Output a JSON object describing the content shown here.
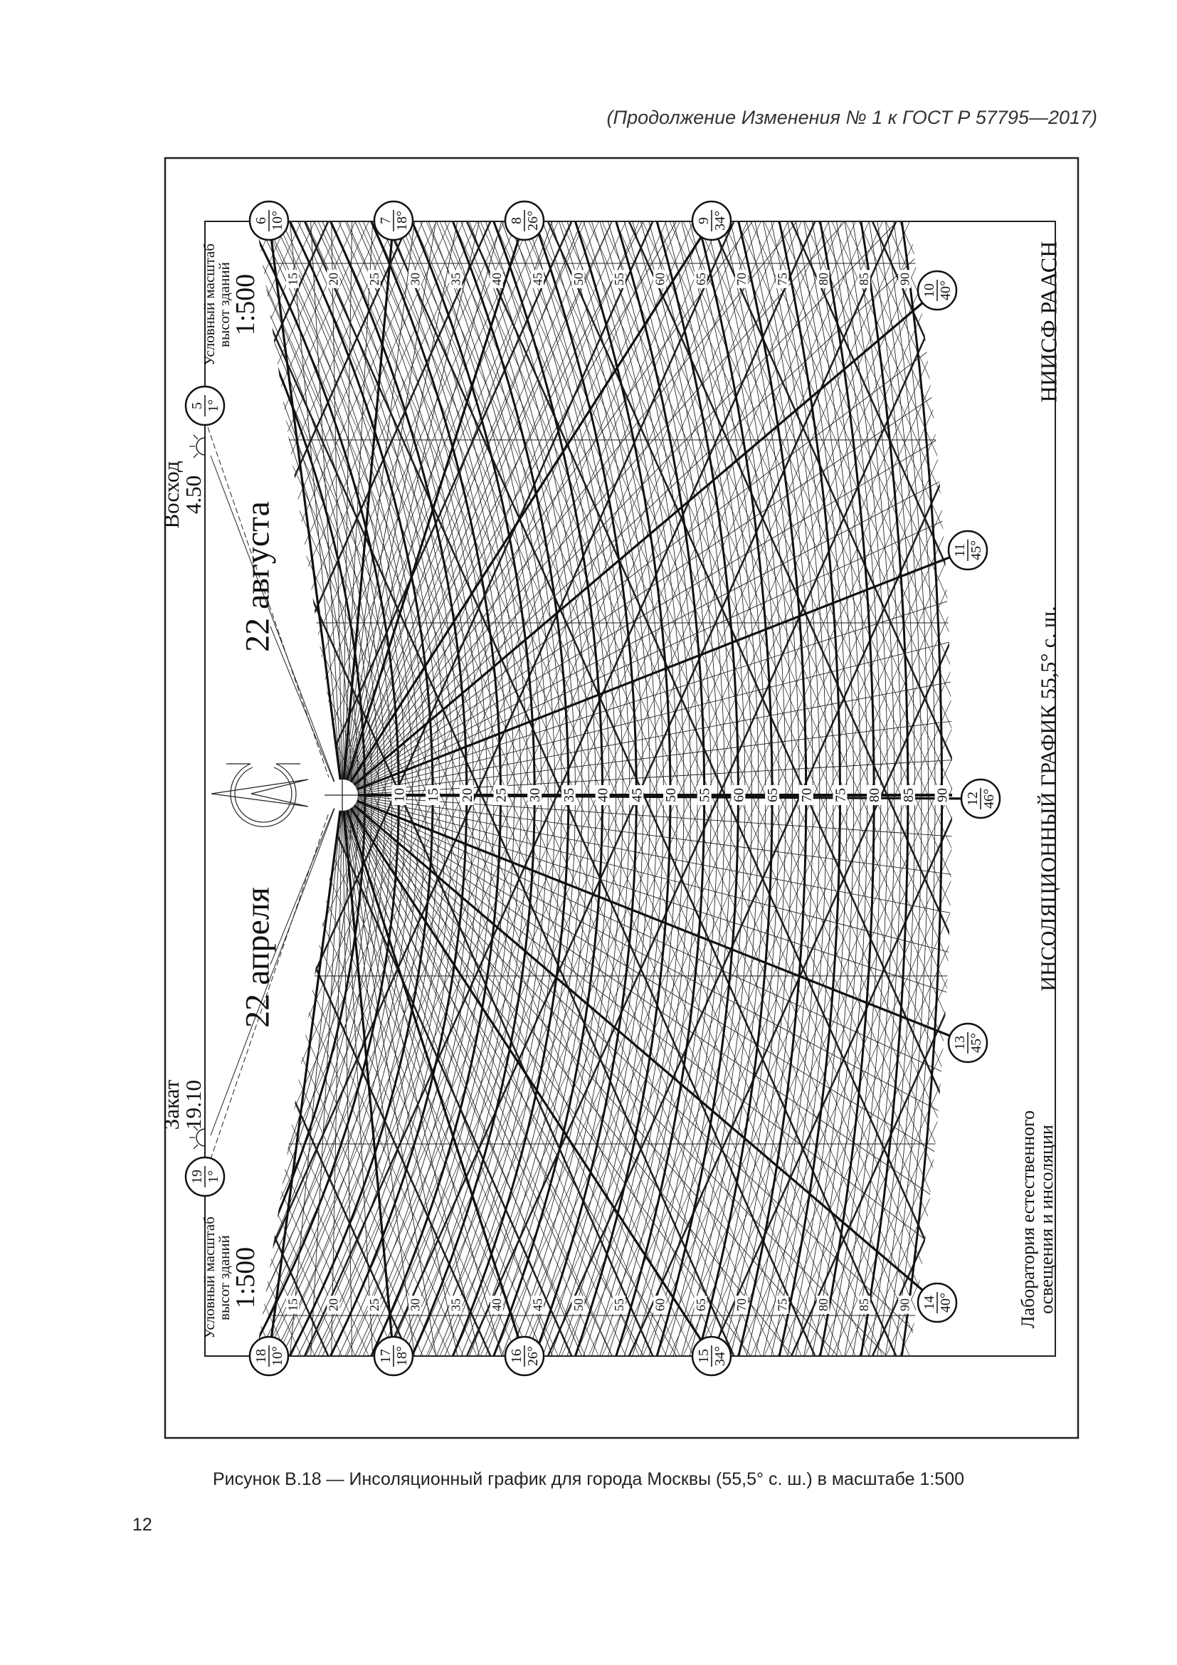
{
  "header": "(Продолжение Изменения № 1 к ГОСТ Р 57795—2017)",
  "caption": "Рисунок В.18 — Инсоляционный график для города Москвы (55,5° с. ш.) в масштабе 1:500",
  "page_number": "12",
  "chart": {
    "title": "ИНСОЛЯЦИОННЫЙ ГРАФИК 55,5° с. ш.",
    "org": "НИИСФ РААСН",
    "lab_line1": "Лаборатория естественного",
    "lab_line2": "освещения и инсоляции",
    "scale_note_top": {
      "line1": "Условный масштаб",
      "line2": "высот зданий",
      "scale": "1:500"
    },
    "scale_note_bottom": {
      "line1": "Условный масштаб",
      "line2": "высот зданий",
      "scale": "1:500"
    },
    "sunrise": {
      "label": "Восход",
      "time": "4.50"
    },
    "sunset": {
      "label": "Закат",
      "time": "19.10"
    },
    "date_top": "22 августа",
    "date_bottom": "22 апреля",
    "hour_markers": [
      {
        "hour": "5",
        "altitude": "1°"
      },
      {
        "hour": "6",
        "altitude": "10°"
      },
      {
        "hour": "7",
        "altitude": "18°"
      },
      {
        "hour": "8",
        "altitude": "26°"
      },
      {
        "hour": "9",
        "altitude": "34°"
      },
      {
        "hour": "10",
        "altitude": "40°"
      },
      {
        "hour": "11",
        "altitude": "45°"
      },
      {
        "hour": "12",
        "altitude": "46°"
      },
      {
        "hour": "13",
        "altitude": "45°"
      },
      {
        "hour": "14",
        "altitude": "40°"
      },
      {
        "hour": "15",
        "altitude": "34°"
      },
      {
        "hour": "16",
        "altitude": "26°"
      },
      {
        "hour": "17",
        "altitude": "18°"
      },
      {
        "hour": "18",
        "altitude": "10°"
      },
      {
        "hour": "19",
        "altitude": "1°"
      }
    ],
    "axis_labels": [
      "10",
      "15",
      "20",
      "25",
      "30",
      "35",
      "40",
      "45",
      "50",
      "55",
      "60",
      "65",
      "70",
      "75",
      "80",
      "85",
      "90"
    ],
    "top_labels": [
      "15",
      "20",
      "25",
      "30",
      "35",
      "40",
      "45",
      "50",
      "55",
      "60",
      "65",
      "70",
      "75",
      "80",
      "85",
      "90"
    ],
    "bottom_labels": [
      "15",
      "20",
      "25",
      "30",
      "35",
      "40",
      "45",
      "50",
      "55",
      "60",
      "65",
      "70",
      "75",
      "80",
      "85",
      "90"
    ]
  }
}
